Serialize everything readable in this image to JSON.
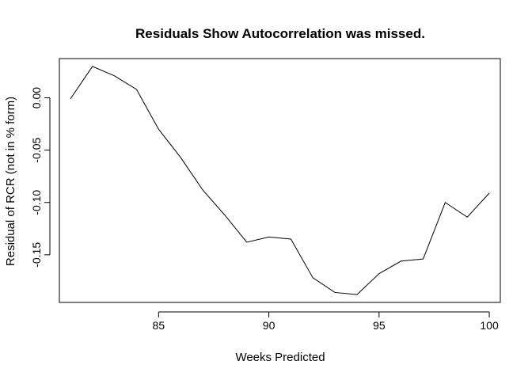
{
  "chart_data": {
    "type": "line",
    "title": "Residuals Show Autocorrelation was missed.",
    "xlabel": "Weeks Predicted",
    "ylabel": "Residual of RCR (not in % form)",
    "x": [
      81,
      82,
      83,
      84,
      85,
      86,
      87,
      88,
      89,
      90,
      91,
      92,
      93,
      94,
      95,
      96,
      97,
      98,
      99,
      100
    ],
    "series": [
      {
        "values": [
          -0.001,
          0.03,
          0.021,
          0.008,
          -0.03,
          -0.057,
          -0.088,
          -0.112,
          -0.138,
          -0.133,
          -0.135,
          -0.172,
          -0.186,
          -0.188,
          -0.168,
          -0.156,
          -0.154,
          -0.1,
          -0.114,
          -0.091
        ]
      }
    ],
    "xlim": [
      80.5,
      100.5
    ],
    "ylim": [
      -0.1955,
      0.0375
    ],
    "x_ticks": [
      85,
      90,
      95,
      100
    ],
    "x_tick_labels": [
      "85",
      "90",
      "95",
      "100"
    ],
    "y_ticks": [
      0.0,
      -0.05,
      -0.1,
      -0.15
    ],
    "y_tick_labels": [
      "0.00",
      "-0.05",
      "-0.10",
      "-0.15"
    ],
    "grid": false,
    "line_color": "#000000"
  }
}
